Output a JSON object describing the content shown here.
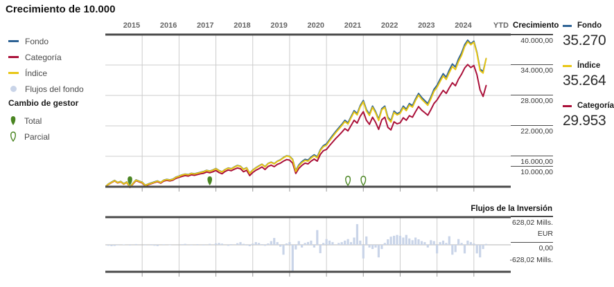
{
  "title": "Crecimiento de 10.000",
  "legend": {
    "items": [
      {
        "label": "Fondo",
        "color": "#2d6294",
        "swatch": "dash"
      },
      {
        "label": "Categoría",
        "color": "#aa1039",
        "swatch": "dash"
      },
      {
        "label": "Índice",
        "color": "#e8c613",
        "swatch": "dash"
      },
      {
        "label": "Flujos del fondo",
        "color": "#c9d4e8",
        "swatch": "dot"
      }
    ]
  },
  "manager_change": {
    "heading": "Cambio de gestor",
    "pin_color": "#4a8522",
    "items": [
      {
        "label": "Total",
        "style": "filled"
      },
      {
        "label": "Parcial",
        "style": "outline"
      }
    ]
  },
  "growth_axis": {
    "header": "Crecimiento",
    "tick_labels": [
      "40.000,00",
      "34.000,00",
      "28.000,00",
      "22.000,00",
      "16.000,00",
      "10.000,00"
    ],
    "tick_values": [
      40000,
      34000,
      28000,
      22000,
      16000,
      10000
    ]
  },
  "summary": {
    "items": [
      {
        "label": "Fondo",
        "value": "35.270",
        "color": "#2d6294"
      },
      {
        "label": "Índice",
        "value": "35.264",
        "color": "#e8c613"
      },
      {
        "label": "Categoría",
        "value": "29.953",
        "color": "#aa1039"
      }
    ]
  },
  "flows_panel": {
    "header": "Flujos de la Inversión",
    "max_label": "628,02 Mills.",
    "currency_label": "EUR",
    "zero_label": "0,00",
    "min_label": "-628,02 Mills."
  },
  "chart_data": [
    {
      "type": "line",
      "title": "Crecimiento de 10.000",
      "x_tick_labels": [
        "2015",
        "2016",
        "2017",
        "2018",
        "2019",
        "2020",
        "2021",
        "2022",
        "2023",
        "2024",
        "YTD"
      ],
      "start": "2015-01",
      "frequency": "monthly",
      "ylim": [
        10000,
        40000
      ],
      "grid_values": [
        34000,
        28000,
        22000,
        16000
      ],
      "series": [
        {
          "name": "Fondo",
          "color": "#2d6294",
          "final_value": 35270,
          "values": [
            10000,
            10550,
            10900,
            11250,
            10850,
            11050,
            10600,
            10950,
            9950,
            10700,
            11350,
            11100,
            10900,
            10300,
            10550,
            10750,
            10950,
            11150,
            10850,
            11300,
            11450,
            11350,
            11500,
            11900,
            12100,
            12350,
            12500,
            12400,
            12650,
            12550,
            12700,
            12850,
            13000,
            13250,
            13100,
            13300,
            13600,
            13200,
            12950,
            13400,
            13700,
            13550,
            13900,
            14200,
            14050,
            13450,
            13750,
            12650,
            13300,
            13750,
            14100,
            14450,
            13950,
            14600,
            14850,
            14550,
            15050,
            15300,
            15750,
            16100,
            16000,
            15400,
            13150,
            14300,
            14950,
            15400,
            15250,
            15850,
            16300,
            15900,
            17300,
            18100,
            18450,
            19300,
            20100,
            20900,
            21600,
            22300,
            23100,
            22600,
            23800,
            25000,
            24400,
            26000,
            27000,
            25200,
            24300,
            25900,
            24800,
            23300,
            25400,
            25900,
            23700,
            23000,
            24900,
            24400,
            24700,
            25900,
            25300,
            26400,
            26000,
            27300,
            28400,
            27600,
            27000,
            26400,
            27700,
            29200,
            30000,
            31200,
            32300,
            31600,
            33000,
            34200,
            33600,
            35200,
            36400,
            38000,
            38900,
            38200,
            38700,
            36500,
            33200,
            32700,
            35270
          ]
        },
        {
          "name": "Índice",
          "color": "#e8c613",
          "final_value": 35264,
          "values": [
            10000,
            10500,
            10850,
            11200,
            10800,
            11000,
            10550,
            10900,
            9900,
            10650,
            11300,
            11050,
            10850,
            10250,
            10500,
            10700,
            10900,
            11100,
            10800,
            11250,
            11400,
            11300,
            11450,
            11850,
            12050,
            12300,
            12450,
            12350,
            12600,
            12500,
            12650,
            12800,
            12950,
            13200,
            13050,
            13250,
            13550,
            13150,
            12900,
            13350,
            13650,
            13500,
            13850,
            14150,
            14000,
            13400,
            13700,
            12600,
            13250,
            13700,
            14050,
            14400,
            13900,
            14550,
            14800,
            14500,
            15000,
            15250,
            15700,
            16050,
            15950,
            15300,
            13000,
            14100,
            14750,
            15200,
            15050,
            15650,
            16100,
            15700,
            17100,
            17900,
            18200,
            19050,
            19850,
            20650,
            21350,
            22050,
            22850,
            22350,
            23550,
            24750,
            24150,
            25750,
            26750,
            24950,
            24050,
            25650,
            24550,
            23050,
            25150,
            25650,
            23450,
            22750,
            24650,
            24150,
            24450,
            25600,
            25000,
            26100,
            25700,
            27000,
            28050,
            27250,
            26650,
            26050,
            27350,
            28800,
            29600,
            30750,
            31850,
            31150,
            32500,
            33700,
            33100,
            34700,
            35900,
            37600,
            38600,
            38000,
            38500,
            36300,
            32900,
            32400,
            35264
          ]
        },
        {
          "name": "Categoría",
          "color": "#aa1039",
          "final_value": 29953,
          "values": [
            10000,
            10450,
            10800,
            11150,
            10750,
            10950,
            10500,
            10850,
            9850,
            10550,
            11200,
            10950,
            10750,
            10150,
            10400,
            10600,
            10800,
            11000,
            10700,
            11100,
            11250,
            11150,
            11300,
            11650,
            11850,
            12050,
            12200,
            12100,
            12350,
            12250,
            12400,
            12550,
            12650,
            12900,
            12750,
            12950,
            13200,
            12800,
            12550,
            13000,
            13300,
            13150,
            13450,
            13700,
            13550,
            12950,
            13250,
            12200,
            12800,
            13250,
            13550,
            13900,
            13400,
            14000,
            14250,
            13950,
            14400,
            14650,
            15050,
            15350,
            15250,
            14650,
            12600,
            13600,
            14200,
            14650,
            14500,
            15050,
            15450,
            15050,
            16350,
            17100,
            17350,
            18100,
            18800,
            19500,
            20100,
            20750,
            21450,
            21000,
            22050,
            23100,
            22550,
            23900,
            24800,
            23100,
            22300,
            23700,
            22700,
            21300,
            23200,
            23700,
            21700,
            21200,
            22800,
            22400,
            22600,
            23600,
            23100,
            24000,
            23700,
            24800,
            25800,
            25100,
            24600,
            24100,
            25200,
            26400,
            27100,
            28100,
            29000,
            28400,
            29500,
            30500,
            29900,
            31200,
            32200,
            33400,
            34100,
            33500,
            33900,
            32100,
            29100,
            27800,
            29953
          ]
        }
      ],
      "manager_changes": [
        {
          "type": "Total",
          "month_index": 8
        },
        {
          "type": "Total",
          "month_index": 34
        },
        {
          "type": "Parcial",
          "month_index": 79
        },
        {
          "type": "Parcial",
          "month_index": 84
        }
      ]
    },
    {
      "type": "bar",
      "title": "Flujos de la Inversión",
      "unit": "Mills. EUR",
      "ylim": [
        -628.02,
        628.02
      ],
      "bar_color": "#c9d4e8",
      "values": [
        0,
        -20,
        -30,
        -25,
        -12,
        0,
        10,
        0,
        -15,
        0,
        18,
        0,
        0,
        -12,
        0,
        14,
        -20,
        -28,
        0,
        12,
        0,
        -10,
        0,
        0,
        0,
        14,
        22,
        0,
        -12,
        0,
        16,
        0,
        -14,
        0,
        22,
        0,
        32,
        42,
        26,
        0,
        -22,
        16,
        0,
        36,
        62,
        22,
        -16,
        -32,
        26,
        62,
        42,
        16,
        -22,
        32,
        85,
        155,
        62,
        -42,
        -225,
        32,
        62,
        -600,
        -105,
        85,
        -62,
        42,
        65,
        95,
        -62,
        335,
        -190,
        42,
        130,
        95,
        62,
        0,
        42,
        62,
        95,
        130,
        62,
        165,
        470,
        95,
        -310,
        190,
        -62,
        -95,
        -62,
        -285,
        -95,
        42,
        125,
        185,
        205,
        225,
        205,
        165,
        225,
        145,
        105,
        165,
        125,
        85,
        62,
        -62,
        105,
        85,
        -195,
        62,
        95,
        42,
        195,
        -225,
        -165,
        130,
        42,
        -195,
        95,
        62,
        30,
        -195,
        -285,
        -95,
        20
      ]
    }
  ]
}
